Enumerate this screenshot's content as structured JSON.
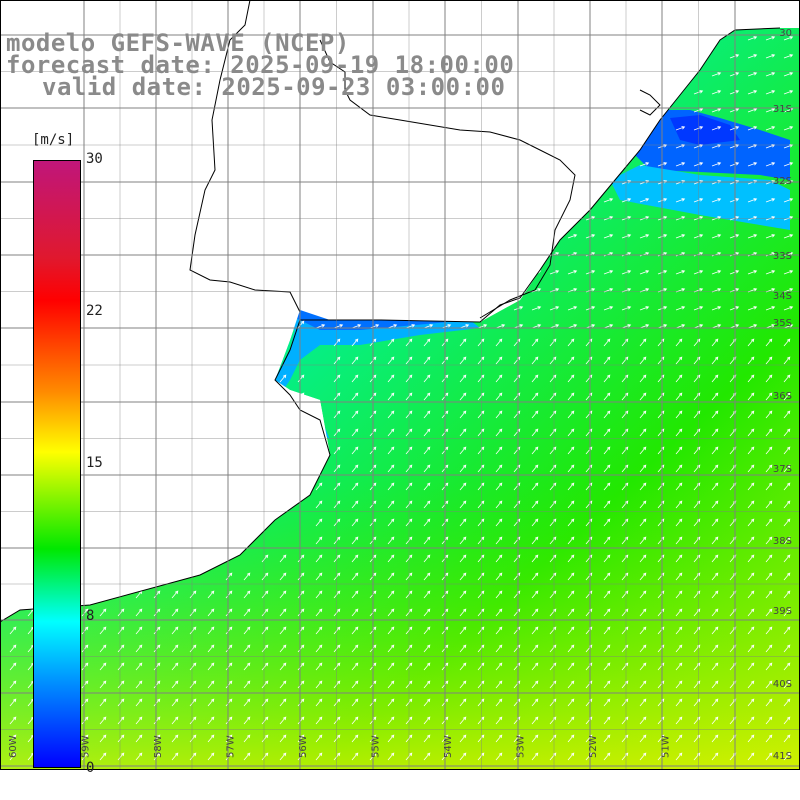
{
  "title": {
    "model": "modelo GEFS-WAVE (NCEP)",
    "forecast": "forecast date: 2025-09-19 18:00:00",
    "valid": "valid date: 2025-09-23 03:00:00"
  },
  "colorbar": {
    "unit": "[m/s]",
    "ticks": [
      "30",
      "22",
      "15",
      "8",
      "0"
    ],
    "colors": [
      "#c0167a",
      "#ff0000",
      "#ff8a00",
      "#ffff00",
      "#00e800",
      "#00ffff",
      "#0000ff"
    ]
  },
  "axes": {
    "lat_labels": [
      "30",
      "31S",
      "32S",
      "33S",
      "34S",
      "35S",
      "36S",
      "37S",
      "38S",
      "39S",
      "40S",
      "41S"
    ],
    "lon_labels": [
      "60W",
      "59W",
      "58W",
      "57W",
      "56W",
      "55W",
      "54W",
      "53W",
      "52W",
      "51W"
    ]
  },
  "colors": {
    "land": "#ffffff",
    "grid": "#808080",
    "coast": "#000000",
    "arrows": "#ffffff",
    "title": "#8a8a8a"
  }
}
